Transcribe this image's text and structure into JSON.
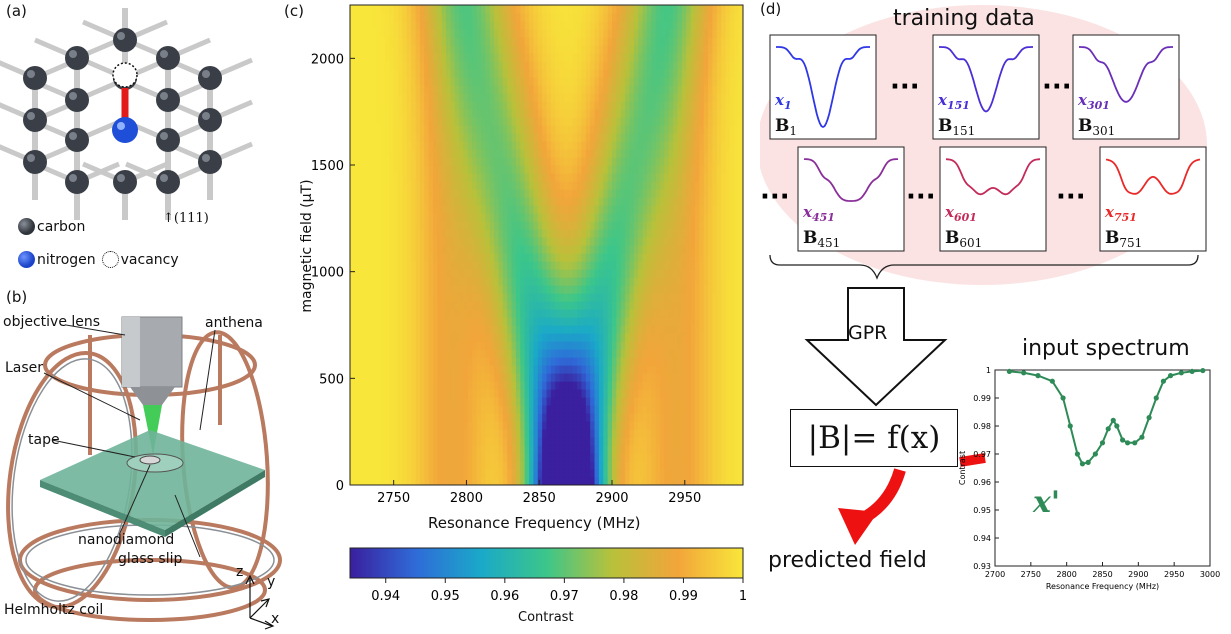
{
  "panels": {
    "a": "(a)",
    "b": "(b)",
    "c": "(c)",
    "d": "(d)"
  },
  "panel_a": {
    "legend_carbon": "carbon",
    "legend_nitrogen": "nitrogen",
    "legend_vacancy": "vacancy",
    "axis_label": "↑(111)",
    "colors": {
      "carbon": "#3a3f47",
      "nitrogen": "#1f4fd8",
      "vacancy": "#111111",
      "bond": "#c9c9c9",
      "arrow": "#e21a1a"
    }
  },
  "panel_b": {
    "objective_lens": "objective lens",
    "anthena": "anthena",
    "laser": "Laser",
    "tape": "tape",
    "nanodiamond": "nanodiamond",
    "glass_slip": "glass slip",
    "helmholtz_coil": "Helmholtz coil",
    "axis_z": "z",
    "axis_y": "y",
    "axis_x": "x",
    "colors": {
      "coil": "#b97a5f",
      "laser": "#22c33a",
      "plate": "#6fb49a"
    }
  },
  "panel_d": {
    "training_title": "training data",
    "input_title": "input spectrum",
    "gpr_label": "GPR",
    "formula": "|B|= f(x)",
    "predicted": "predicted field",
    "x_prime": "x'",
    "ellipsis": "···",
    "thumbs": [
      {
        "x": "x",
        "x_sub": "1",
        "b": "B",
        "b_sub": "1",
        "color": "#2f37e6"
      },
      {
        "x": "x",
        "x_sub": "151",
        "b": "B",
        "b_sub": "151",
        "color": "#4a2fd6"
      },
      {
        "x": "x",
        "x_sub": "301",
        "b": "B",
        "b_sub": "301",
        "color": "#6a2fb8"
      },
      {
        "x": "x",
        "x_sub": "451",
        "b": "B",
        "b_sub": "451",
        "color": "#8a2f9a"
      },
      {
        "x": "x",
        "x_sub": "601",
        "b": "B",
        "b_sub": "601",
        "color": "#c42a5a"
      },
      {
        "x": "x",
        "x_sub": "751",
        "b": "B",
        "b_sub": "751",
        "color": "#e82a2a"
      }
    ],
    "colors": {
      "blob": "#fbe3e3",
      "arrow": "#ee1111",
      "spectrum": "#2e8b57"
    }
  },
  "chart_data": [
    {
      "type": "heatmap",
      "xlabel": "Resonance Frequency (MHz)",
      "ylabel": "magnetic field (μT)",
      "xlim": [
        2720,
        2990
      ],
      "ylim": [
        0,
        2250
      ],
      "xticks": [
        2750,
        2800,
        2850,
        2900,
        2950
      ],
      "yticks": [
        0,
        500,
        1000,
        1500,
        2000
      ],
      "colorbar": {
        "label": "Contrast",
        "range": [
          0.934,
          1.0
        ],
        "ticks": [
          0.94,
          0.95,
          0.96,
          0.97,
          0.98,
          0.99,
          1
        ]
      },
      "colormap": [
        "#3a1f9e",
        "#2f6bd8",
        "#1aa9c8",
        "#3cc68a",
        "#b8c13a",
        "#f2a53a",
        "#f8e73a"
      ],
      "features": {
        "center_MHz": 2869,
        "splitting_MHz_per_uT": 0.028,
        "min_contrast": 0.934,
        "side_feature_MHz": [
          2790,
          2945
        ]
      }
    },
    {
      "type": "scatter",
      "title": "input spectrum",
      "xlabel": "Resonance Frequency (MHz)",
      "ylabel": "Contrast",
      "xlim": [
        2700,
        3000
      ],
      "ylim": [
        0.93,
        1.0
      ],
      "xticks": [
        2700,
        2750,
        2800,
        2850,
        2900,
        2950,
        3000
      ],
      "yticks": [
        0.93,
        0.94,
        0.95,
        0.96,
        0.97,
        0.98,
        0.99,
        1
      ],
      "series": [
        {
          "x": [
            2720,
            2740,
            2760,
            2780,
            2795,
            2805,
            2815,
            2822,
            2830,
            2840,
            2850,
            2858,
            2865,
            2870,
            2878,
            2885,
            2895,
            2905,
            2915,
            2925,
            2935,
            2945,
            2960,
            2975,
            2990
          ],
          "y": [
            0.9995,
            0.999,
            0.998,
            0.996,
            0.99,
            0.98,
            0.97,
            0.9665,
            0.967,
            0.97,
            0.974,
            0.979,
            0.982,
            0.98,
            0.975,
            0.974,
            0.974,
            0.976,
            0.983,
            0.99,
            0.996,
            0.998,
            0.999,
            0.9995,
            0.9998
          ]
        }
      ]
    }
  ]
}
